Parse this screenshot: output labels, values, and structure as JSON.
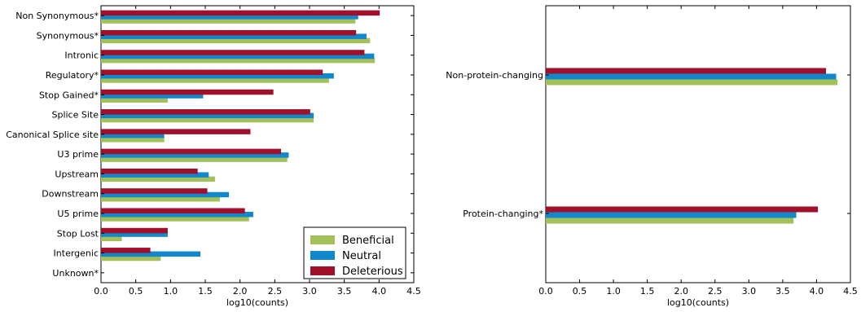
{
  "chart_data": [
    {
      "type": "bar",
      "orientation": "horizontal",
      "title": "",
      "xlabel": "log10(counts)",
      "ylabel": "",
      "xlim": [
        0,
        4.5
      ],
      "xticks": [
        "0.0",
        "0.5",
        "1.0",
        "1.5",
        "2.0",
        "2.5",
        "3.0",
        "3.5",
        "4.0",
        "4.5"
      ],
      "grid": false,
      "legend_position": "bottom-right",
      "categories": [
        "Non Synonymous*",
        "Synonymous*",
        "Intronic",
        "Regulatory*",
        "Stop Gained*",
        "Splice Site",
        "Canonical Splice site",
        "U3 prime",
        "Upstream",
        "Downstream",
        "U5 prime",
        "Stop Lost",
        "Intergenic",
        "Unknown*"
      ],
      "series": [
        {
          "name": "Beneficial",
          "color": "#a3c05a",
          "values": [
            3.66,
            3.87,
            3.94,
            3.28,
            0.96,
            3.06,
            0.91,
            2.68,
            1.64,
            1.71,
            2.13,
            0.3,
            0.86,
            0
          ]
        },
        {
          "name": "Neutral",
          "color": "#1288cc",
          "values": [
            3.7,
            3.82,
            3.93,
            3.35,
            1.47,
            3.06,
            0.91,
            2.7,
            1.55,
            1.84,
            2.19,
            0.96,
            1.43,
            0
          ]
        },
        {
          "name": "Deleterious",
          "color": "#a0102b",
          "values": [
            4.01,
            3.67,
            3.79,
            3.19,
            2.48,
            3.01,
            2.15,
            2.59,
            1.39,
            1.53,
            2.07,
            0.96,
            0.71,
            0
          ]
        }
      ]
    },
    {
      "type": "bar",
      "orientation": "horizontal",
      "title": "",
      "xlabel": "log10(counts)",
      "ylabel": "",
      "xlim": [
        0,
        4.5
      ],
      "xticks": [
        "0.0",
        "0.5",
        "1.0",
        "1.5",
        "2.0",
        "2.5",
        "3.0",
        "3.5",
        "4.0",
        "4.5"
      ],
      "grid": false,
      "categories": [
        "Non-protein-changing",
        "Protein-changing*"
      ],
      "series": [
        {
          "name": "Beneficial",
          "color": "#a3c05a",
          "values": [
            4.31,
            3.66
          ]
        },
        {
          "name": "Neutral",
          "color": "#1288cc",
          "values": [
            4.29,
            3.7
          ]
        },
        {
          "name": "Deleterious",
          "color": "#a0102b",
          "values": [
            4.14,
            4.02
          ]
        }
      ]
    }
  ]
}
